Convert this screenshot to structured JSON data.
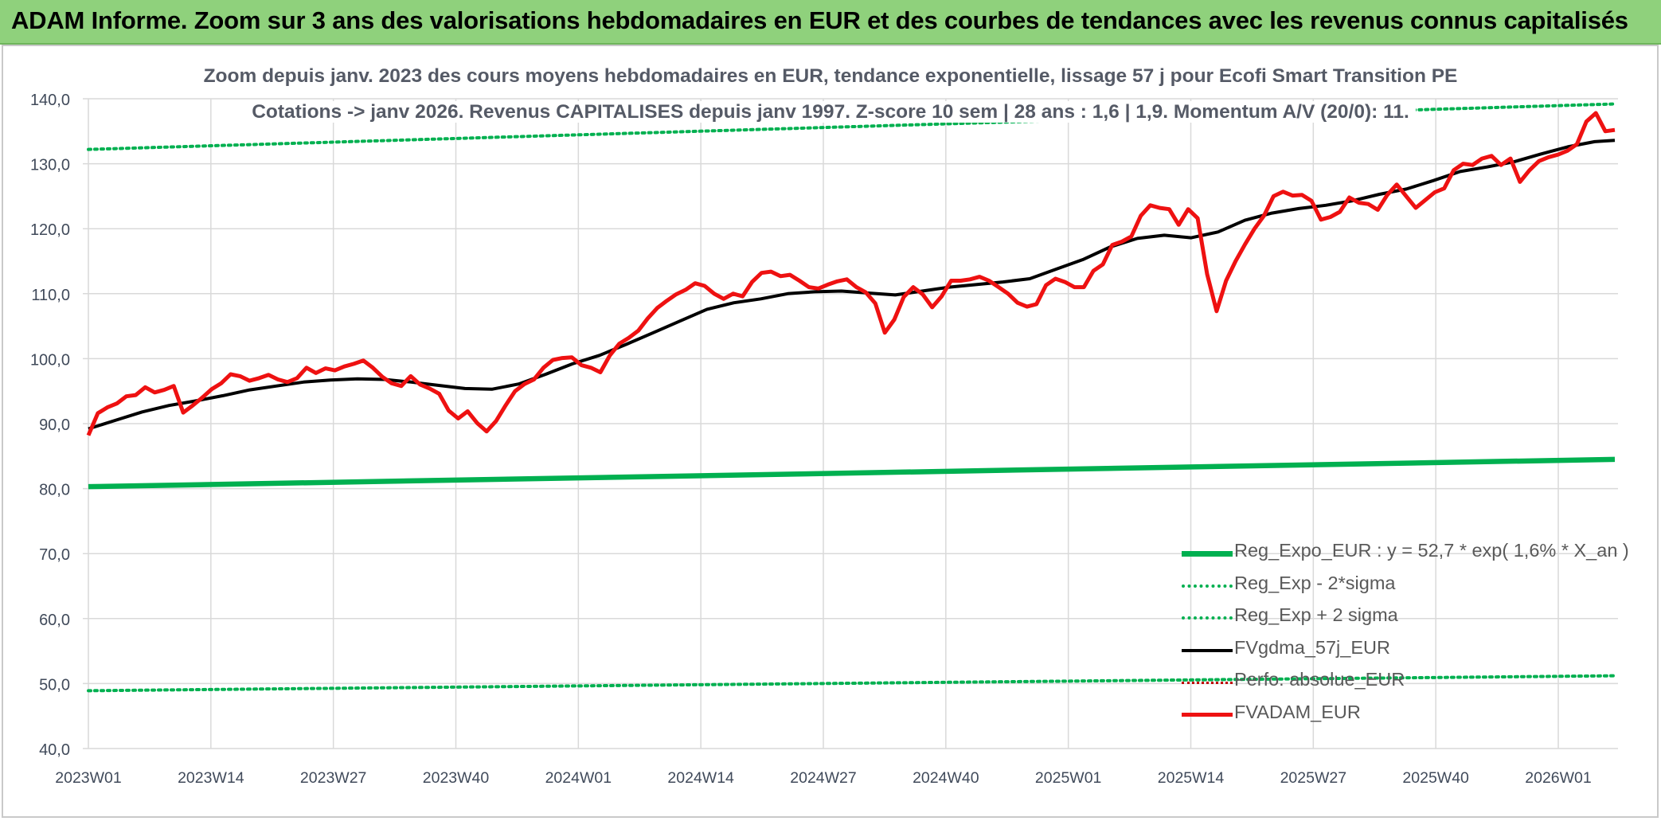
{
  "banner_title": "ADAM Informe. Zoom sur 3 ans des valorisations hebdomadaires en EUR et des courbes de tendances avec les revenus connus capitalisés",
  "colors": {
    "banner": "#8fd17c",
    "reg_expo": "#00b050",
    "fvgdma": "#000000",
    "perfo": "#c00000",
    "fvadam": "#ee1111",
    "grid": "#d9d9d9",
    "axis_text": "#404a5a"
  },
  "chart_data": {
    "type": "line",
    "title": "Zoom depuis janv. 2023 des cours moyens hebdomadaires en EUR, tendance exponentielle, lissage 57 j pour Ecofi Smart Transition PE",
    "subtitle": "Cotations -> janv 2026. Revenus CAPITALISES depuis janv 1997. Z-score 10 sem | 28 ans : 1,6 | 1,9. Momentum A/V (20/0): 11.",
    "x_tick_labels": [
      "2023W01",
      "2023W14",
      "2023W27",
      "2023W40",
      "2024W01",
      "2024W14",
      "2024W27",
      "2024W40",
      "2025W01",
      "2025W14",
      "2025W27",
      "2025W40",
      "2026W01"
    ],
    "y_tick_labels": [
      "40,0",
      "50,0",
      "60,0",
      "70,0",
      "80,0",
      "90,0",
      "100,0",
      "110,0",
      "120,0",
      "130,0",
      "140,0"
    ],
    "ylim": [
      40,
      140
    ],
    "x_range_weeks": [
      0,
      162
    ],
    "grid": true,
    "legend_position": "bottom-right",
    "series": [
      {
        "name": "Reg_Expo_EUR : y = 52,7 * exp( 1,6% *  X_an )",
        "style": "thick-solid",
        "endpoints": {
          "x": [
            0,
            162
          ],
          "y": [
            80.3,
            84.5
          ]
        }
      },
      {
        "name": "Reg_Exp - 2*sigma",
        "style": "dotted",
        "endpoints": {
          "x": [
            0,
            162
          ],
          "y": [
            48.9,
            51.2
          ]
        }
      },
      {
        "name": "Reg_Exp + 2 sigma",
        "style": "dotted",
        "endpoints": {
          "x": [
            0,
            162
          ],
          "y": [
            132.2,
            139.2
          ]
        }
      },
      {
        "name": "FVgdma_57j_EUR",
        "style": "solid",
        "points": [
          [
            0,
            89.2
          ],
          [
            4,
            90.5
          ],
          [
            8,
            91.8
          ],
          [
            12,
            92.8
          ],
          [
            16,
            93.5
          ],
          [
            20,
            94.3
          ],
          [
            24,
            95.2
          ],
          [
            28,
            95.8
          ],
          [
            32,
            96.4
          ],
          [
            36,
            96.7
          ],
          [
            40,
            96.9
          ],
          [
            44,
            96.8
          ],
          [
            48,
            96.4
          ],
          [
            52,
            95.9
          ],
          [
            56,
            95.4
          ],
          [
            60,
            95.3
          ],
          [
            64,
            96.1
          ],
          [
            68,
            97.6
          ],
          [
            72,
            99.2
          ],
          [
            76,
            100.5
          ],
          [
            80,
            102.2
          ],
          [
            84,
            104.0
          ],
          [
            88,
            105.8
          ],
          [
            92,
            107.6
          ],
          [
            96,
            108.6
          ],
          [
            100,
            109.2
          ],
          [
            104,
            110.0
          ],
          [
            108,
            110.3
          ],
          [
            112,
            110.4
          ],
          [
            116,
            110.1
          ],
          [
            120,
            109.8
          ],
          [
            124,
            110.4
          ],
          [
            128,
            111.0
          ],
          [
            132,
            111.4
          ],
          [
            136,
            111.8
          ],
          [
            140,
            112.3
          ],
          [
            144,
            113.8
          ],
          [
            148,
            115.3
          ],
          [
            152,
            117.2
          ],
          [
            156,
            118.5
          ],
          [
            160,
            119.0
          ],
          [
            164,
            118.6
          ],
          [
            168,
            119.5
          ],
          [
            172,
            121.3
          ],
          [
            176,
            122.4
          ],
          [
            180,
            123.1
          ],
          [
            184,
            123.6
          ],
          [
            188,
            124.3
          ],
          [
            192,
            125.3
          ],
          [
            196,
            126.1
          ],
          [
            200,
            127.4
          ],
          [
            204,
            128.8
          ],
          [
            208,
            129.5
          ],
          [
            212,
            130.3
          ],
          [
            216,
            131.5
          ],
          [
            220,
            132.6
          ],
          [
            224,
            133.4
          ],
          [
            227,
            133.6
          ]
        ],
        "note_x_units": "x in weeks since 2023W01 scaled so that 13 weeks = 13 units over 162 visible weeks"
      },
      {
        "name": "Perfo. absolue_EUR",
        "style": "dotted"
      },
      {
        "name": "FVADAM_EUR",
        "style": "thick-solid"
      }
    ]
  }
}
